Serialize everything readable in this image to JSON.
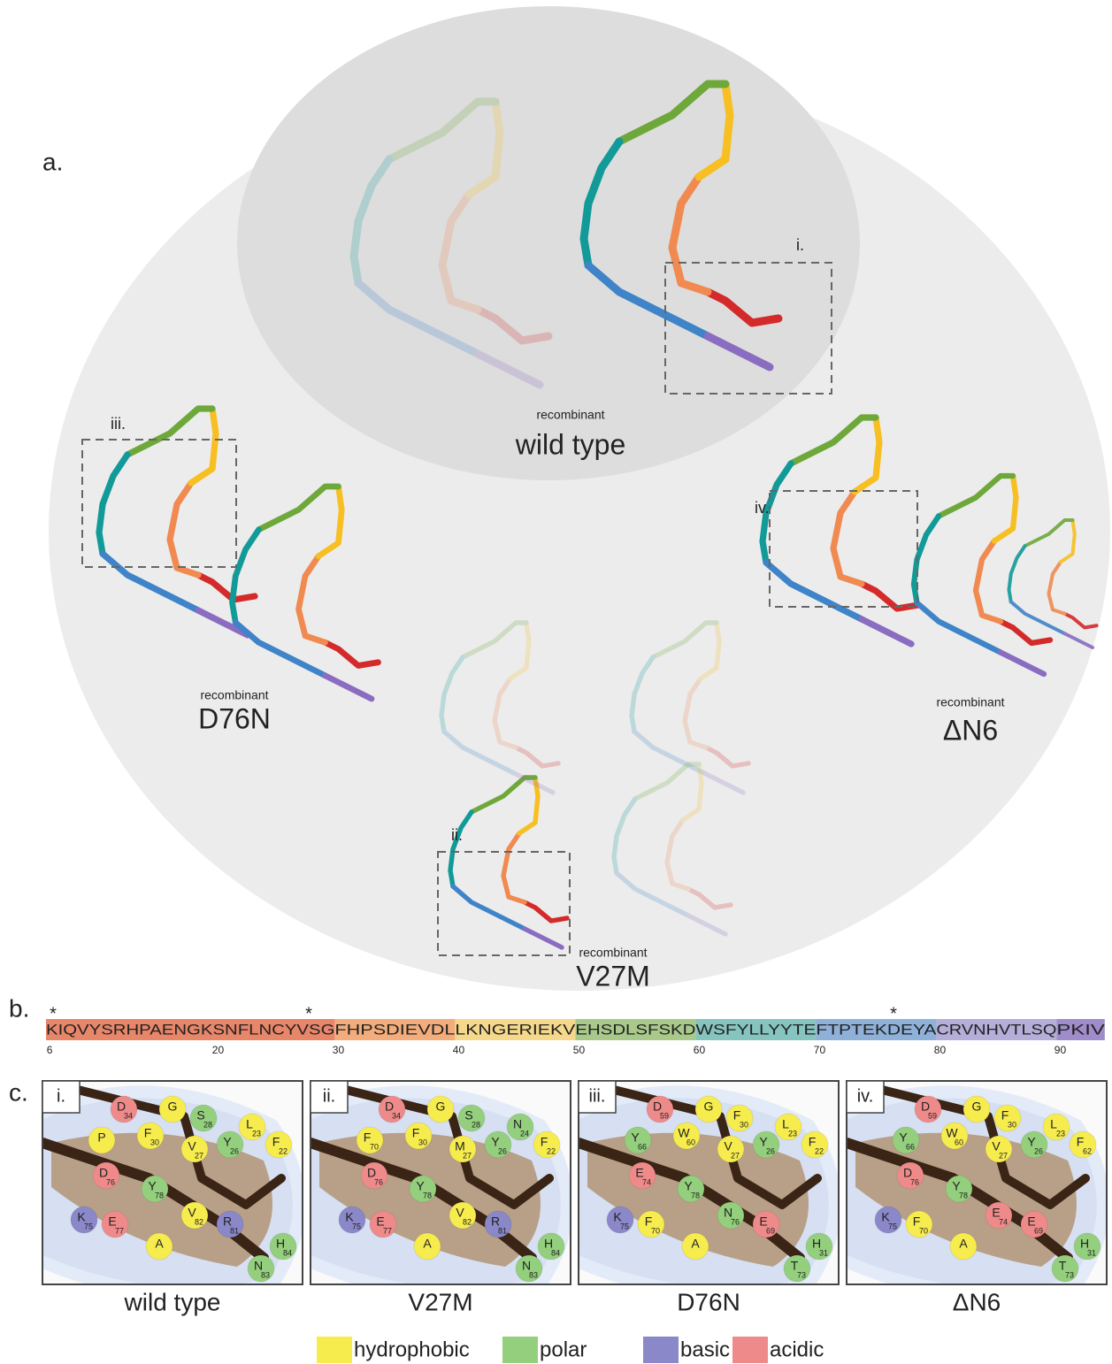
{
  "panel_a": {
    "label": "a.",
    "structures": [
      {
        "prefix": "recombinant",
        "name": "wild type"
      },
      {
        "prefix": "recombinant",
        "name": "D76N"
      },
      {
        "prefix": "recombinant",
        "name": "ΔN6"
      },
      {
        "prefix": "recombinant",
        "name": "V27M"
      }
    ],
    "boxes": [
      "i.",
      "ii.",
      "iii.",
      "iv."
    ]
  },
  "panel_b": {
    "label": "b.",
    "asterisk": "*",
    "segments": [
      {
        "text": "KIQVYSRHPAENGKSNFLNCYVSG",
        "color": "#e8866a"
      },
      {
        "text": "FHPSDIEVDL",
        "color": "#f3ad7c"
      },
      {
        "text": "LKNGERIEKV",
        "color": "#f6d88c"
      },
      {
        "text": "EHSDLSFSKD",
        "color": "#a9c98b"
      },
      {
        "text": "WSFYLLYYTE",
        "color": "#86c4c0"
      },
      {
        "text": "FTPTEKDEYA",
        "color": "#8fb1d9"
      },
      {
        "text": "CRVNHVTLSQ",
        "color": "#b4aed8"
      },
      {
        "text": "PKIV",
        "color": "#9e8ccb"
      }
    ],
    "ticks": [
      6,
      20,
      30,
      40,
      50,
      60,
      70,
      80,
      90
    ]
  },
  "panel_c": {
    "label": "c.",
    "legend": [
      {
        "name": "hydrophobic",
        "color": "#f7ec4e"
      },
      {
        "name": "polar",
        "color": "#93cf7c"
      },
      {
        "name": "basic",
        "color": "#8a88c8"
      },
      {
        "name": "acidic",
        "color": "#ef8a8a"
      }
    ],
    "panels": [
      {
        "tag": "i.",
        "name": "wild type",
        "residues": [
          {
            "aa": "D",
            "num": "34",
            "t": 3
          },
          {
            "aa": "P",
            "t": 0
          },
          {
            "aa": "F",
            "num": "30",
            "t": 0
          },
          {
            "aa": "G",
            "t": 0
          },
          {
            "aa": "S",
            "num": "28",
            "t": 1
          },
          {
            "aa": "V",
            "num": "27",
            "t": 0
          },
          {
            "aa": "Y",
            "num": "26",
            "t": 1
          },
          {
            "aa": "L",
            "num": "23",
            "t": 0
          },
          {
            "aa": "F",
            "num": "22",
            "t": 0
          },
          {
            "aa": "D",
            "num": "76",
            "t": 3
          },
          {
            "aa": "Y",
            "num": "78",
            "t": 1
          },
          {
            "aa": "K",
            "num": "75",
            "t": 2
          },
          {
            "aa": "E",
            "num": "77",
            "t": 3
          },
          {
            "aa": "A",
            "t": 0
          },
          {
            "aa": "V",
            "num": "82",
            "t": 0
          },
          {
            "aa": "R",
            "num": "81",
            "t": 2
          },
          {
            "aa": "N",
            "num": "83",
            "t": 1
          },
          {
            "aa": "H",
            "num": "84",
            "t": 1
          }
        ]
      },
      {
        "tag": "ii.",
        "name": "V27M",
        "residues": [
          {
            "aa": "D",
            "num": "34",
            "t": 3
          },
          {
            "aa": "F",
            "num": "70",
            "t": 0
          },
          {
            "aa": "F",
            "num": "30",
            "t": 0
          },
          {
            "aa": "G",
            "t": 0
          },
          {
            "aa": "S",
            "num": "28",
            "t": 1
          },
          {
            "aa": "M",
            "num": "27",
            "t": 0
          },
          {
            "aa": "Y",
            "num": "26",
            "t": 1
          },
          {
            "aa": "N",
            "num": "24",
            "t": 1
          },
          {
            "aa": "F",
            "num": "22",
            "t": 0
          },
          {
            "aa": "D",
            "num": "76",
            "t": 3
          },
          {
            "aa": "Y",
            "num": "78",
            "t": 1
          },
          {
            "aa": "K",
            "num": "75",
            "t": 2
          },
          {
            "aa": "E",
            "num": "77",
            "t": 3
          },
          {
            "aa": "A",
            "t": 0
          },
          {
            "aa": "V",
            "num": "82",
            "t": 0
          },
          {
            "aa": "R",
            "num": "81",
            "t": 2
          },
          {
            "aa": "N",
            "num": "83",
            "t": 1
          },
          {
            "aa": "H",
            "num": "84",
            "t": 1
          }
        ]
      },
      {
        "tag": "iii.",
        "name": "D76N",
        "residues": [
          {
            "aa": "D",
            "num": "59",
            "t": 3
          },
          {
            "aa": "Y",
            "num": "66",
            "t": 1
          },
          {
            "aa": "W",
            "num": "60",
            "t": 0
          },
          {
            "aa": "G",
            "t": 0
          },
          {
            "aa": "F",
            "num": "30",
            "t": 0
          },
          {
            "aa": "V",
            "num": "27",
            "t": 0
          },
          {
            "aa": "Y",
            "num": "26",
            "t": 1
          },
          {
            "aa": "L",
            "num": "23",
            "t": 0
          },
          {
            "aa": "F",
            "num": "22",
            "t": 0
          },
          {
            "aa": "E",
            "num": "74",
            "t": 3
          },
          {
            "aa": "Y",
            "num": "78",
            "t": 1
          },
          {
            "aa": "K",
            "num": "75",
            "t": 2
          },
          {
            "aa": "F",
            "num": "70",
            "t": 0
          },
          {
            "aa": "A",
            "t": 0
          },
          {
            "aa": "N",
            "num": "76",
            "t": 1
          },
          {
            "aa": "E",
            "num": "69",
            "t": 3
          },
          {
            "aa": "T",
            "num": "73",
            "t": 1
          },
          {
            "aa": "H",
            "num": "31",
            "t": 1
          }
        ]
      },
      {
        "tag": "iv.",
        "name": "ΔN6",
        "residues": [
          {
            "aa": "D",
            "num": "59",
            "t": 3
          },
          {
            "aa": "Y",
            "num": "66",
            "t": 1
          },
          {
            "aa": "W",
            "num": "60",
            "t": 0
          },
          {
            "aa": "G",
            "t": 0
          },
          {
            "aa": "F",
            "num": "30",
            "t": 0
          },
          {
            "aa": "V",
            "num": "27",
            "t": 0
          },
          {
            "aa": "Y",
            "num": "26",
            "t": 1
          },
          {
            "aa": "L",
            "num": "23",
            "t": 0
          },
          {
            "aa": "F",
            "num": "62",
            "t": 0
          },
          {
            "aa": "D",
            "num": "76",
            "t": 3
          },
          {
            "aa": "Y",
            "num": "78",
            "t": 1
          },
          {
            "aa": "K",
            "num": "75",
            "t": 2
          },
          {
            "aa": "F",
            "num": "70",
            "t": 0
          },
          {
            "aa": "A",
            "t": 0
          },
          {
            "aa": "E",
            "num": "74",
            "t": 3
          },
          {
            "aa": "E",
            "num": "69",
            "t": 3
          },
          {
            "aa": "T",
            "num": "73",
            "t": 1
          },
          {
            "aa": "H",
            "num": "31",
            "t": 1
          }
        ]
      }
    ]
  }
}
